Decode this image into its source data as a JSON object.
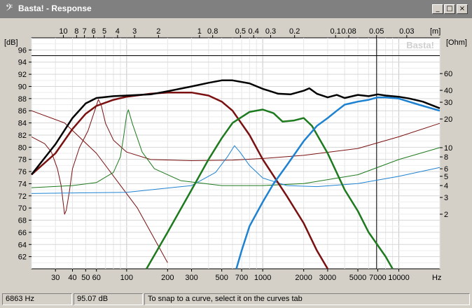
{
  "window": {
    "title": "Basta! - Response",
    "icon": "bass-clef-icon",
    "buttons": [
      "minimize",
      "maximize",
      "close"
    ]
  },
  "plot": {
    "watermark": "Basta!",
    "left_unit": "[dB]",
    "right_unit": "[Ohm]",
    "top_unit": "[m]",
    "bottom_unit": "Hz",
    "db_ticks": [
      "96",
      "94",
      "92",
      "90",
      "88",
      "86",
      "84",
      "82",
      "80",
      "78",
      "76",
      "74",
      "72",
      "70",
      "68",
      "66",
      "64",
      "62"
    ],
    "ohm_ticks": [
      "60",
      "40",
      "30",
      "20",
      "10",
      "8",
      "6",
      "5",
      "4",
      "3",
      "2"
    ],
    "freq_ticks": [
      "30",
      "40",
      "50",
      "60",
      "100",
      "200",
      "300",
      "500",
      "700",
      "1000",
      "2000",
      "3000",
      "5000",
      "7000",
      "10000"
    ],
    "wavelength_ticks": [
      "10",
      "8",
      "7",
      "6",
      "5",
      "4",
      "3",
      "2",
      "1",
      "0.8",
      "0.5",
      "0.4",
      "0.3",
      "0.2",
      "0.1",
      "0.08",
      "0.05",
      "0.03"
    ],
    "cursor": {
      "freq_hz": 6863,
      "level_db": 95.07
    },
    "colors": {
      "total": "#000000",
      "woofer": "#7a1010",
      "mid": "#1e7a1e",
      "tweeter": "#1e82d2"
    }
  },
  "status": {
    "frequency": "6863 Hz",
    "level": "95.07 dB",
    "hint": "To snap to a curve, select it on the curves tab"
  }
}
